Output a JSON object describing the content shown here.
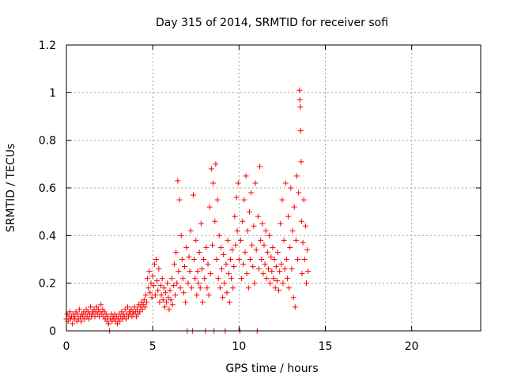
{
  "chart_data": {
    "type": "scatter",
    "title": "Day 315 of 2014, SRMTID for receiver sofi",
    "xlabel": "GPS time / hours",
    "ylabel": "SRMTID / TECUs",
    "xlim": [
      0,
      24
    ],
    "ylim": [
      0,
      1.2
    ],
    "xticks": [
      0,
      5,
      10,
      15,
      20
    ],
    "yticks": [
      0,
      0.2,
      0.4,
      0.6,
      0.8,
      1,
      1.2
    ],
    "xtick_labels": [
      "0",
      "5",
      "10",
      "15",
      "20"
    ],
    "ytick_labels": [
      "0",
      "0.2",
      "0.4",
      "0.6",
      "0.8",
      "1",
      "1.2"
    ],
    "grid": true,
    "marker": "+",
    "color": "#ff0000",
    "series": [
      {
        "name": "SRMTID",
        "points": [
          [
            0.0,
            0.05
          ],
          [
            0.05,
            0.07
          ],
          [
            0.1,
            0.04
          ],
          [
            0.15,
            0.06
          ],
          [
            0.2,
            0.08
          ],
          [
            0.25,
            0.05
          ],
          [
            0.3,
            0.06
          ],
          [
            0.35,
            0.03
          ],
          [
            0.4,
            0.07
          ],
          [
            0.45,
            0.05
          ],
          [
            0.5,
            0.06
          ],
          [
            0.55,
            0.08
          ],
          [
            0.6,
            0.04
          ],
          [
            0.65,
            0.07
          ],
          [
            0.7,
            0.05
          ],
          [
            0.75,
            0.09
          ],
          [
            0.8,
            0.06
          ],
          [
            0.85,
            0.04
          ],
          [
            0.9,
            0.07
          ],
          [
            0.95,
            0.06
          ],
          [
            1.0,
            0.08
          ],
          [
            1.05,
            0.05
          ],
          [
            1.1,
            0.07
          ],
          [
            1.15,
            0.09
          ],
          [
            1.2,
            0.06
          ],
          [
            1.25,
            0.08
          ],
          [
            1.3,
            0.05
          ],
          [
            1.35,
            0.07
          ],
          [
            1.4,
            0.1
          ],
          [
            1.45,
            0.06
          ],
          [
            1.5,
            0.08
          ],
          [
            1.55,
            0.07
          ],
          [
            1.6,
            0.09
          ],
          [
            1.65,
            0.06
          ],
          [
            1.7,
            0.08
          ],
          [
            1.75,
            0.1
          ],
          [
            1.8,
            0.07
          ],
          [
            1.85,
            0.09
          ],
          [
            1.9,
            0.06
          ],
          [
            1.95,
            0.08
          ],
          [
            2.0,
            0.11
          ],
          [
            2.05,
            0.07
          ],
          [
            2.1,
            0.09
          ],
          [
            2.15,
            0.06
          ],
          [
            2.2,
            0.08
          ],
          [
            2.25,
            0.05
          ],
          [
            2.3,
            0.07
          ],
          [
            2.35,
            0.04
          ],
          [
            2.4,
            0.06
          ],
          [
            2.45,
            0.03
          ],
          [
            2.5,
            0.0
          ],
          [
            2.55,
            0.05
          ],
          [
            2.6,
            0.07
          ],
          [
            2.65,
            0.04
          ],
          [
            2.7,
            0.06
          ],
          [
            2.75,
            0.05
          ],
          [
            2.8,
            0.07
          ],
          [
            2.85,
            0.04
          ],
          [
            2.9,
            0.06
          ],
          [
            2.95,
            0.03
          ],
          [
            3.0,
            0.05
          ],
          [
            3.05,
            0.07
          ],
          [
            3.1,
            0.04
          ],
          [
            3.15,
            0.06
          ],
          [
            3.2,
            0.08
          ],
          [
            3.25,
            0.05
          ],
          [
            3.3,
            0.07
          ],
          [
            3.35,
            0.06
          ],
          [
            3.4,
            0.09
          ],
          [
            3.45,
            0.05
          ],
          [
            3.5,
            0.07
          ],
          [
            3.55,
            0.1
          ],
          [
            3.6,
            0.06
          ],
          [
            3.65,
            0.08
          ],
          [
            3.7,
            0.07
          ],
          [
            3.75,
            0.09
          ],
          [
            3.8,
            0.06
          ],
          [
            3.85,
            0.08
          ],
          [
            3.9,
            0.07
          ],
          [
            3.95,
            0.1
          ],
          [
            4.0,
            0.08
          ],
          [
            4.05,
            0.06
          ],
          [
            4.1,
            0.09
          ],
          [
            4.15,
            0.07
          ],
          [
            4.2,
            0.11
          ],
          [
            4.25,
            0.08
          ],
          [
            4.3,
            0.1
          ],
          [
            4.35,
            0.12
          ],
          [
            4.4,
            0.09
          ],
          [
            4.45,
            0.11
          ],
          [
            4.5,
            0.13
          ],
          [
            4.55,
            0.1
          ],
          [
            4.6,
            0.15
          ],
          [
            4.65,
            0.12
          ],
          [
            4.7,
            0.22
          ],
          [
            4.75,
            0.18
          ],
          [
            4.8,
            0.25
          ],
          [
            4.85,
            0.16
          ],
          [
            4.9,
            0.2
          ],
          [
            4.95,
            0.14
          ],
          [
            5.0,
            0.23
          ],
          [
            5.05,
            0.19
          ],
          [
            5.1,
            0.28
          ],
          [
            5.15,
            0.15
          ],
          [
            5.2,
            0.3
          ],
          [
            5.25,
            0.21
          ],
          [
            5.3,
            0.17
          ],
          [
            5.35,
            0.26
          ],
          [
            5.4,
            0.12
          ],
          [
            5.45,
            0.19
          ],
          [
            5.5,
            0.15
          ],
          [
            5.55,
            0.22
          ],
          [
            5.6,
            0.13
          ],
          [
            5.65,
            0.18
          ],
          [
            5.7,
            0.1
          ],
          [
            5.75,
            0.16
          ],
          [
            5.8,
            0.12
          ],
          [
            5.85,
            0.2
          ],
          [
            5.9,
            0.14
          ],
          [
            5.95,
            0.09
          ],
          [
            6.0,
            0.17
          ],
          [
            6.05,
            0.13
          ],
          [
            6.1,
            0.22
          ],
          [
            6.15,
            0.11
          ],
          [
            6.2,
            0.19
          ],
          [
            6.25,
            0.28
          ],
          [
            6.3,
            0.15
          ],
          [
            6.35,
            0.33
          ],
          [
            6.4,
            0.2
          ],
          [
            6.45,
            0.63
          ],
          [
            6.5,
            0.25
          ],
          [
            6.55,
            0.55
          ],
          [
            6.6,
            0.18
          ],
          [
            6.65,
            0.4
          ],
          [
            6.7,
            0.3
          ],
          [
            6.75,
            0.22
          ],
          [
            6.8,
            0.16
          ],
          [
            6.85,
            0.27
          ],
          [
            6.9,
            0.12
          ],
          [
            6.95,
            0.35
          ],
          [
            7.0,
            0.0
          ],
          [
            7.05,
            0.2
          ],
          [
            7.1,
            0.31
          ],
          [
            7.15,
            0.25
          ],
          [
            7.2,
            0.42
          ],
          [
            7.25,
            0.18
          ],
          [
            7.3,
            0.0
          ],
          [
            7.35,
            0.57
          ],
          [
            7.4,
            0.3
          ],
          [
            7.45,
            0.22
          ],
          [
            7.5,
            0.38
          ],
          [
            7.55,
            0.15
          ],
          [
            7.6,
            0.25
          ],
          [
            7.65,
            0.2
          ],
          [
            7.7,
            0.33
          ],
          [
            7.75,
            0.18
          ],
          [
            7.8,
            0.45
          ],
          [
            7.85,
            0.26
          ],
          [
            7.9,
            0.12
          ],
          [
            7.95,
            0.3
          ],
          [
            8.0,
            0.22
          ],
          [
            8.05,
            0.0
          ],
          [
            8.1,
            0.35
          ],
          [
            8.15,
            0.18
          ],
          [
            8.2,
            0.28
          ],
          [
            8.25,
            0.15
          ],
          [
            8.3,
            0.52
          ],
          [
            8.35,
            0.24
          ],
          [
            8.4,
            0.68
          ],
          [
            8.45,
            0.36
          ],
          [
            8.5,
            0.62
          ],
          [
            8.55,
            0.0
          ],
          [
            8.6,
            0.46
          ],
          [
            8.65,
            0.7
          ],
          [
            8.7,
            0.3
          ],
          [
            8.75,
            0.55
          ],
          [
            8.8,
            0.22
          ],
          [
            8.85,
            0.4
          ],
          [
            8.9,
            0.18
          ],
          [
            8.95,
            0.35
          ],
          [
            9.0,
            0.26
          ],
          [
            9.05,
            0.14
          ],
          [
            9.1,
            0.32
          ],
          [
            9.15,
            0.2
          ],
          [
            9.2,
            0.0
          ],
          [
            9.25,
            0.28
          ],
          [
            9.3,
            0.16
          ],
          [
            9.35,
            0.38
          ],
          [
            9.4,
            0.24
          ],
          [
            9.45,
            0.12
          ],
          [
            9.5,
            0.3
          ],
          [
            9.55,
            0.22
          ],
          [
            9.6,
            0.34
          ],
          [
            9.65,
            0.18
          ],
          [
            9.7,
            0.27
          ],
          [
            9.75,
            0.48
          ],
          [
            9.8,
            0.36
          ],
          [
            9.85,
            0.56
          ],
          [
            9.9,
            0.42
          ],
          [
            9.95,
            0.62
          ],
          [
            10.0,
            0.3
          ],
          [
            10.05,
            0.0
          ],
          [
            10.1,
            0.38
          ],
          [
            10.15,
            0.22
          ],
          [
            10.2,
            0.46
          ],
          [
            10.25,
            0.28
          ],
          [
            10.3,
            0.55
          ],
          [
            10.35,
            0.33
          ],
          [
            10.4,
            0.65
          ],
          [
            10.45,
            0.24
          ],
          [
            10.5,
            0.42
          ],
          [
            10.55,
            0.18
          ],
          [
            10.6,
            0.5
          ],
          [
            10.65,
            0.3
          ],
          [
            10.7,
            0.58
          ],
          [
            10.75,
            0.36
          ],
          [
            10.8,
            0.27
          ],
          [
            10.85,
            0.44
          ],
          [
            10.9,
            0.2
          ],
          [
            10.95,
            0.62
          ],
          [
            11.0,
            0.34
          ],
          [
            11.05,
            0.0
          ],
          [
            11.1,
            0.48
          ],
          [
            11.15,
            0.26
          ],
          [
            11.2,
            0.69
          ],
          [
            11.25,
            0.38
          ],
          [
            11.3,
            0.3
          ],
          [
            11.35,
            0.45
          ],
          [
            11.4,
            0.24
          ],
          [
            11.45,
            0.36
          ],
          [
            11.5,
            0.28
          ],
          [
            11.55,
            0.42
          ],
          [
            11.6,
            0.22
          ],
          [
            11.65,
            0.33
          ],
          [
            11.7,
            0.26
          ],
          [
            11.75,
            0.4
          ],
          [
            11.8,
            0.2
          ],
          [
            11.85,
            0.31
          ],
          [
            11.9,
            0.25
          ],
          [
            11.95,
            0.35
          ],
          [
            12.0,
            0.22
          ],
          [
            12.05,
            0.3
          ],
          [
            12.1,
            0.18
          ],
          [
            12.15,
            0.27
          ],
          [
            12.2,
            0.21
          ],
          [
            12.25,
            0.33
          ],
          [
            12.3,
            0.17
          ],
          [
            12.35,
            0.25
          ],
          [
            12.4,
            0.45
          ],
          [
            12.45,
            0.28
          ],
          [
            12.5,
            0.55
          ],
          [
            12.55,
            0.2
          ],
          [
            12.6,
            0.38
          ],
          [
            12.65,
            0.26
          ],
          [
            12.7,
            0.62
          ],
          [
            12.75,
            0.3
          ],
          [
            12.8,
            0.22
          ],
          [
            12.85,
            0.48
          ],
          [
            12.9,
            0.18
          ],
          [
            12.95,
            0.35
          ],
          [
            13.0,
            0.6
          ],
          [
            13.05,
            0.26
          ],
          [
            13.1,
            0.42
          ],
          [
            13.15,
            0.14
          ],
          [
            13.2,
            0.52
          ],
          [
            13.25,
            0.1
          ],
          [
            13.3,
            0.38
          ],
          [
            13.35,
            0.65
          ],
          [
            13.4,
            0.3
          ],
          [
            13.45,
            0.58
          ],
          [
            13.5,
            1.01
          ],
          [
            13.52,
            0.97
          ],
          [
            13.55,
            0.94
          ],
          [
            13.57,
            0.84
          ],
          [
            13.6,
            0.71
          ],
          [
            13.62,
            0.46
          ],
          [
            13.65,
            0.24
          ],
          [
            13.7,
            0.37
          ],
          [
            13.75,
            0.55
          ],
          [
            13.8,
            0.3
          ],
          [
            13.85,
            0.44
          ],
          [
            13.9,
            0.2
          ],
          [
            13.95,
            0.34
          ],
          [
            14.0,
            0.25
          ]
        ]
      }
    ]
  }
}
